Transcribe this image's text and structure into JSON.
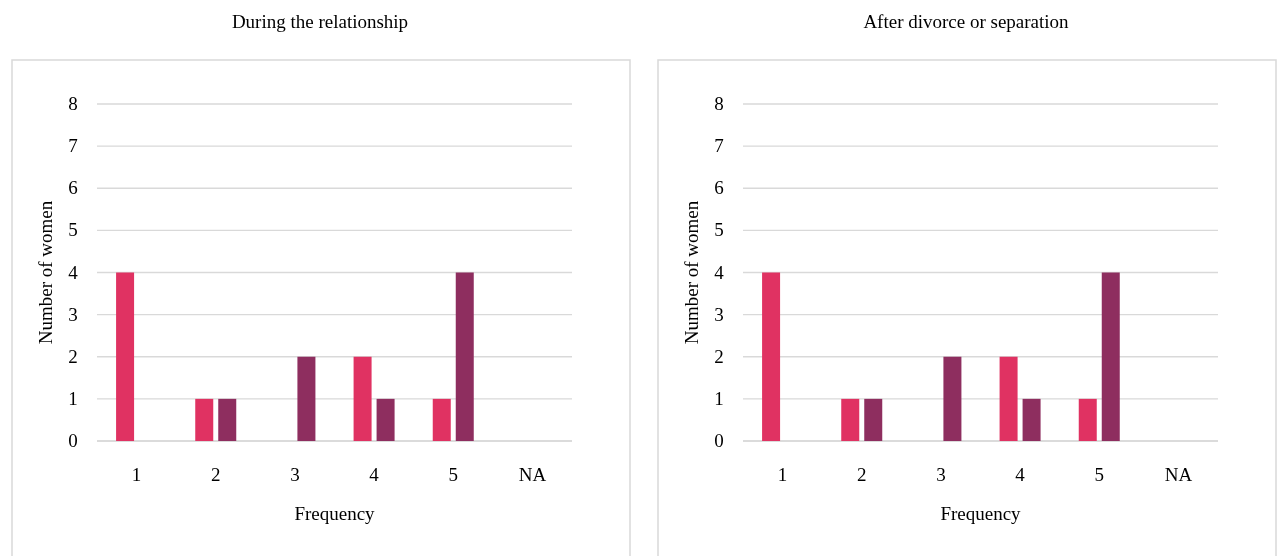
{
  "chart_data": [
    {
      "type": "bar",
      "title": "During the relationship",
      "xlabel": "Frequency",
      "ylabel": "Number of women",
      "categories": [
        "1",
        "2",
        "3",
        "4",
        "5",
        "NA"
      ],
      "ylim": [
        0,
        8
      ],
      "yticks": [
        0,
        1,
        2,
        3,
        4,
        5,
        6,
        7,
        8
      ],
      "grid": "y",
      "series": [
        {
          "color": "#e03262",
          "values": [
            4,
            1,
            0,
            2,
            1,
            0
          ]
        },
        {
          "color": "#8e2e5f",
          "values": [
            0,
            1,
            2,
            1,
            4,
            0
          ]
        }
      ]
    },
    {
      "type": "bar",
      "title": "After divorce or separation",
      "xlabel": "Frequency",
      "ylabel": "Number of women",
      "categories": [
        "1",
        "2",
        "3",
        "4",
        "5",
        "NA"
      ],
      "ylim": [
        0,
        8
      ],
      "yticks": [
        0,
        1,
        2,
        3,
        4,
        5,
        6,
        7,
        8
      ],
      "grid": "y",
      "series": [
        {
          "color": "#e03262",
          "values": [
            4,
            1,
            0,
            2,
            1,
            0
          ]
        },
        {
          "color": "#8e2e5f",
          "values": [
            0,
            1,
            2,
            1,
            4,
            0
          ]
        }
      ]
    }
  ]
}
